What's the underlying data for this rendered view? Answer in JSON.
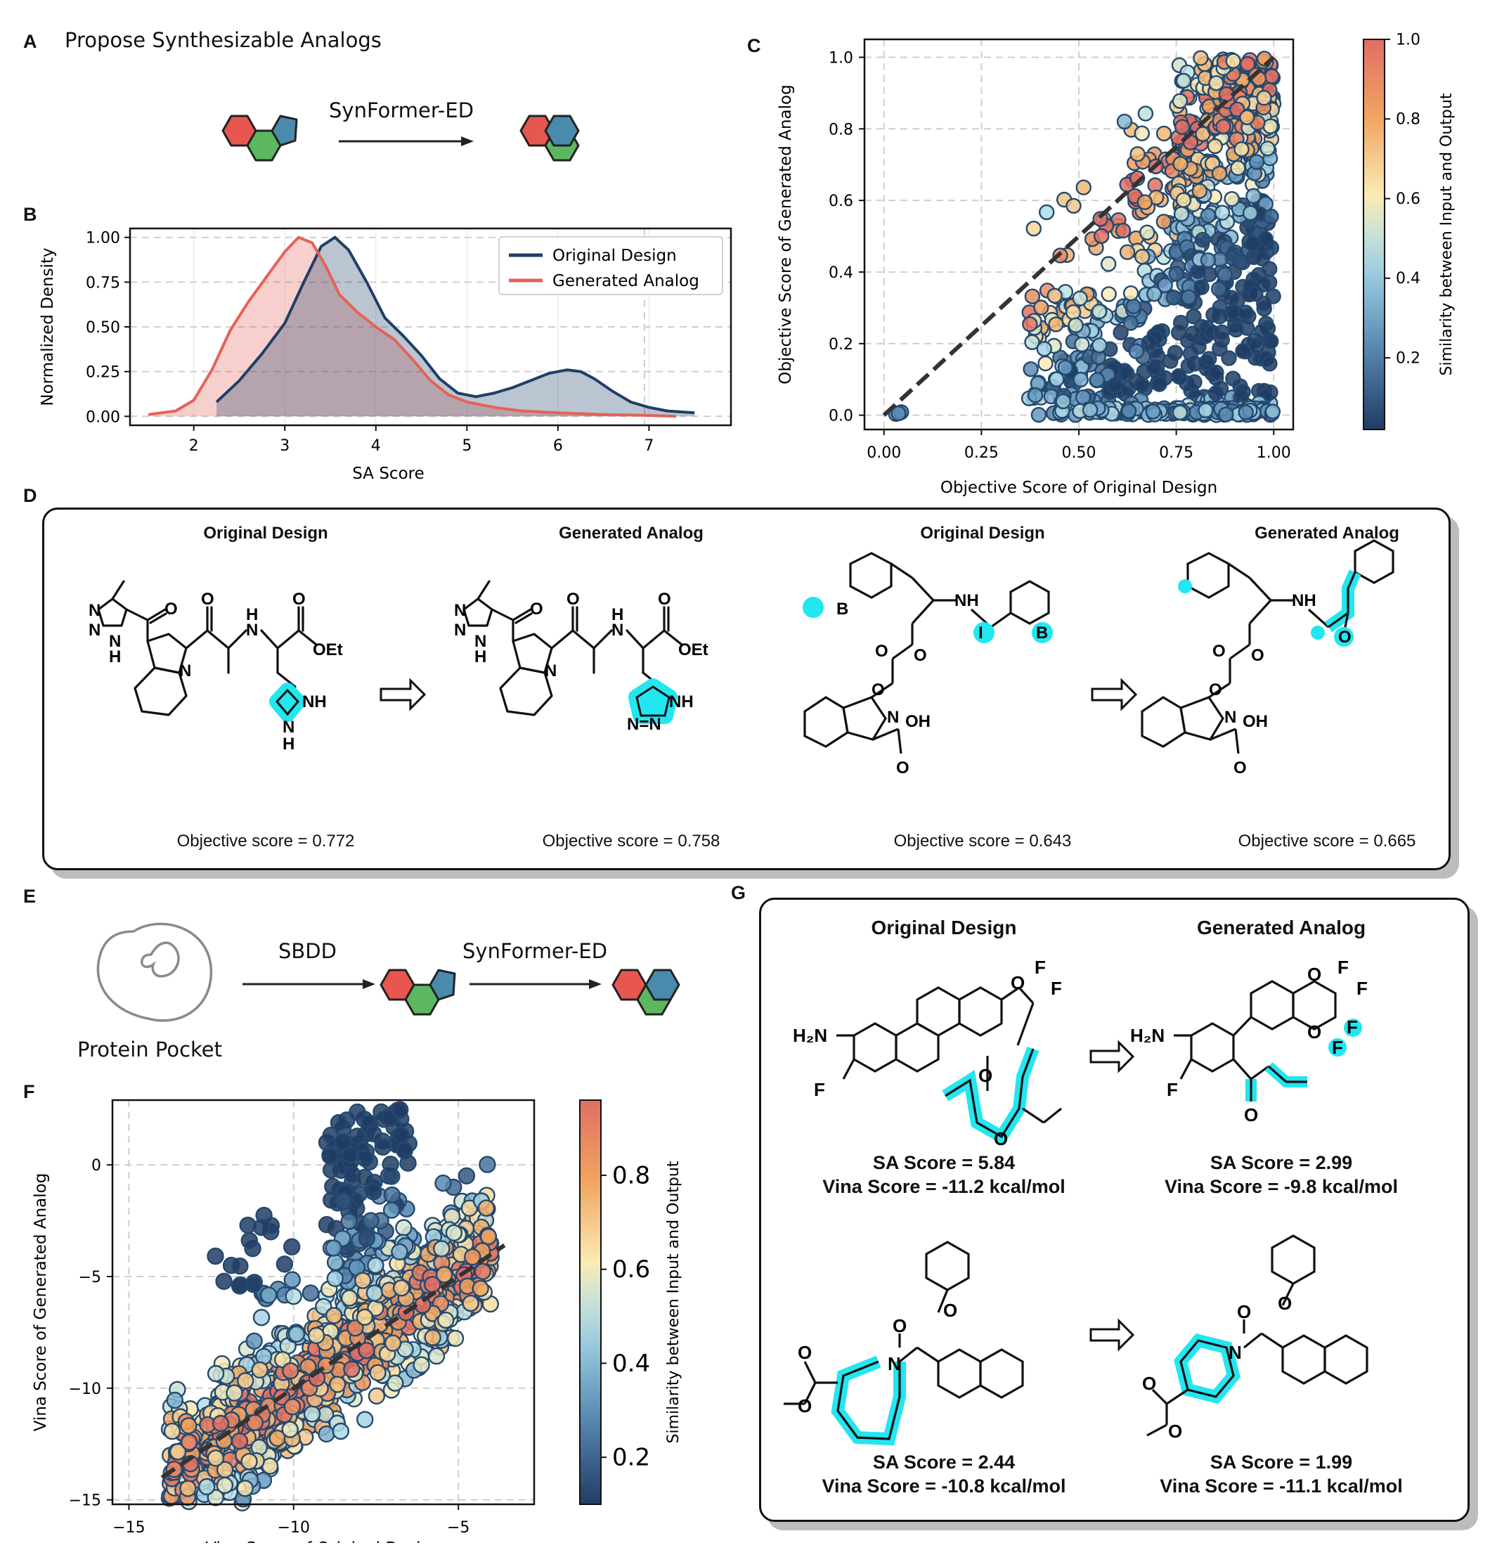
{
  "panels": {
    "a": {
      "letter": "A",
      "title": "Propose Synthesizable Analogs",
      "arrow_label": "SynFormer-ED"
    },
    "b": {
      "letter": "B"
    },
    "c": {
      "letter": "C"
    },
    "d": {
      "letter": "D",
      "headers": [
        "Original Design",
        "Generated Analog",
        "Original Design",
        "Generated Analog"
      ],
      "scores": [
        "Objective score = 0.772",
        "Objective score = 0.758",
        "Objective score = 0.643",
        "Objective score = 0.665"
      ]
    },
    "e": {
      "letter": "E",
      "pocket_label": "Protein Pocket",
      "step1": "SBDD",
      "step2": "SynFormer-ED"
    },
    "f": {
      "letter": "F"
    },
    "g": {
      "letter": "G",
      "headers": [
        "Original Design",
        "Generated Analog"
      ],
      "top_left": [
        "SA Score = 5.84",
        "Vina Score = -11.2 kcal/mol"
      ],
      "top_right": [
        "SA Score = 2.99",
        "Vina Score = -9.8 kcal/mol"
      ],
      "bottom_left": [
        "SA Score = 2.44",
        "Vina Score = -10.8 kcal/mol"
      ],
      "bottom_right": [
        "SA Score = 1.99",
        "Vina Score = -11.1 kcal/mol"
      ]
    }
  },
  "colors": {
    "red_ring": "#e8574f",
    "green_ring": "#5cb860",
    "blue_ring": "#4a8aad",
    "original_line": "#1f3f66",
    "generated_line": "#e46258",
    "highlight": "#22e6f0"
  },
  "chart_data": [
    {
      "id": "B",
      "type": "area",
      "xlabel": "SA Score",
      "ylabel": "Normalized Density",
      "xlim": [
        1.3,
        7.9
      ],
      "ylim": [
        -0.05,
        1.05
      ],
      "xticks": [
        2,
        3,
        4,
        5,
        6,
        7
      ],
      "yticks": [
        0.0,
        0.25,
        0.5,
        0.75,
        1.0
      ],
      "ytick_labels": [
        "0.00",
        "0.25",
        "0.50",
        "0.75",
        "1.00"
      ],
      "legend": {
        "position": "top-right",
        "entries": [
          "Original Design",
          "Generated Analog"
        ]
      },
      "series": [
        {
          "name": "Original Design",
          "x": [
            2.25,
            2.5,
            2.75,
            3.0,
            3.2,
            3.4,
            3.55,
            3.7,
            3.9,
            4.1,
            4.3,
            4.5,
            4.7,
            4.9,
            5.1,
            5.3,
            5.5,
            5.7,
            5.9,
            6.1,
            6.25,
            6.4,
            6.6,
            6.8,
            7.0,
            7.2,
            7.5
          ],
          "y": [
            0.08,
            0.2,
            0.35,
            0.52,
            0.74,
            0.95,
            1.0,
            0.93,
            0.75,
            0.55,
            0.45,
            0.34,
            0.21,
            0.13,
            0.11,
            0.13,
            0.16,
            0.2,
            0.24,
            0.26,
            0.25,
            0.21,
            0.14,
            0.08,
            0.05,
            0.03,
            0.02
          ]
        },
        {
          "name": "Generated Analog",
          "x": [
            1.5,
            1.8,
            2.0,
            2.2,
            2.4,
            2.6,
            2.8,
            3.0,
            3.15,
            3.3,
            3.45,
            3.6,
            3.8,
            4.0,
            4.2,
            4.4,
            4.6,
            4.8,
            5.0,
            5.3,
            5.6,
            6.0,
            6.5,
            7.0,
            7.3
          ],
          "y": [
            0.01,
            0.03,
            0.09,
            0.26,
            0.48,
            0.64,
            0.78,
            0.92,
            1.0,
            0.97,
            0.84,
            0.68,
            0.58,
            0.5,
            0.43,
            0.32,
            0.2,
            0.12,
            0.08,
            0.05,
            0.03,
            0.02,
            0.01,
            0.005,
            0.0
          ]
        }
      ]
    },
    {
      "id": "C",
      "type": "scatter",
      "xlabel": "Objective Score of Original Design",
      "ylabel": "Objective Score of Generated Analog",
      "xlim": [
        -0.05,
        1.05
      ],
      "ylim": [
        -0.04,
        1.05
      ],
      "xticks": [
        0.0,
        0.25,
        0.5,
        0.75,
        1.0
      ],
      "xtick_labels": [
        "0.00",
        "0.25",
        "0.50",
        "0.75",
        "1.00"
      ],
      "yticks": [
        0.0,
        0.2,
        0.4,
        0.6,
        0.8,
        1.0
      ],
      "ytick_labels": [
        "0.0",
        "0.2",
        "0.4",
        "0.6",
        "0.8",
        "1.0"
      ],
      "reference_line": {
        "from": [
          0,
          0
        ],
        "to": [
          1,
          1
        ],
        "style": "dashed"
      },
      "colorbar": {
        "label": "Similarity between Input and Output",
        "range": [
          0.02,
          1.0
        ],
        "ticks": [
          0.2,
          0.4,
          0.6,
          0.8,
          1.0
        ],
        "tick_labels": [
          "0.2",
          "0.4",
          "0.6",
          "0.8",
          "1.0"
        ]
      },
      "clusters": [
        {
          "x": [
            0.6,
            0.8
          ],
          "y": [
            0.4,
            0.85
          ],
          "n": 70
        },
        {
          "x": [
            0.75,
            1.0
          ],
          "y": [
            0.45,
            1.0
          ],
          "n": 260
        },
        {
          "x": [
            0.85,
            1.0
          ],
          "y": [
            0.8,
            1.0
          ],
          "n": 110
        },
        {
          "x": [
            0.37,
            0.62
          ],
          "y": [
            0.0,
            0.35
          ],
          "n": 140
        },
        {
          "x": [
            0.62,
            0.78
          ],
          "y": [
            0.0,
            0.4
          ],
          "n": 60
        },
        {
          "x": [
            0.78,
            1.0
          ],
          "y": [
            0.0,
            0.45
          ],
          "n": 130
        },
        {
          "x": [
            0.5,
            1.0
          ],
          "y": [
            0.0,
            0.02
          ],
          "n": 140
        },
        {
          "x": [
            0.0,
            0.05
          ],
          "y": [
            0.0,
            0.01
          ],
          "n": 4
        },
        {
          "x": [
            0.38,
            0.62
          ],
          "y": [
            0.4,
            0.65
          ],
          "n": 16
        }
      ]
    },
    {
      "id": "F",
      "type": "scatter",
      "xlabel": "Vina Score of Original Design",
      "ylabel": "Vina Score of Generated Analog",
      "xlim": [
        -15.5,
        -2.7
      ],
      "ylim": [
        -15.2,
        2.9
      ],
      "xticks": [
        -15,
        -10,
        -5
      ],
      "xtick_labels": [
        "−15",
        "−10",
        "−5"
      ],
      "yticks": [
        0,
        -5,
        -10,
        -15
      ],
      "ytick_labels": [
        "0",
        "−5",
        "−10",
        "−15"
      ],
      "reference_line": {
        "from": [
          -14,
          -14
        ],
        "to": [
          -3.6,
          -3.6
        ],
        "style": "dashed"
      },
      "colorbar": {
        "label": "Similarity between Input and Output",
        "range": [
          0.1,
          0.96
        ],
        "ticks": [
          0.2,
          0.4,
          0.6,
          0.8
        ],
        "tick_labels": [
          "0.2",
          "0.4",
          "0.6",
          "0.8"
        ]
      },
      "clusters": [
        {
          "x": [
            -13.8,
            -4.0
          ],
          "y": [
            -14.0,
            -3.5
          ],
          "n": 900,
          "band": true
        },
        {
          "x": [
            -9.0,
            -6.5
          ],
          "y": [
            -6.0,
            2.5
          ],
          "n": 140
        },
        {
          "x": [
            -12.5,
            -10.0
          ],
          "y": [
            -6.0,
            -2.0
          ],
          "n": 25
        }
      ]
    }
  ]
}
